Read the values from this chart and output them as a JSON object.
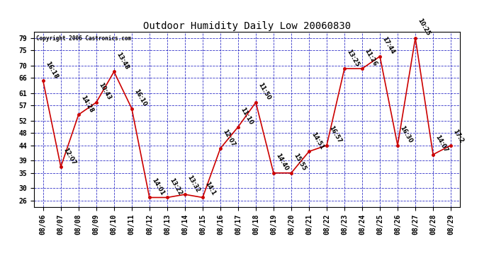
{
  "title": "Outdoor Humidity Daily Low 20060830",
  "copyright": "Copyright 2006 Castronics.com",
  "x_labels": [
    "08/06",
    "08/07",
    "08/08",
    "08/09",
    "08/10",
    "08/11",
    "08/12",
    "08/13",
    "08/14",
    "08/15",
    "08/16",
    "08/17",
    "08/18",
    "08/19",
    "08/20",
    "08/21",
    "08/22",
    "08/23",
    "08/24",
    "08/25",
    "08/26",
    "08/27",
    "08/28",
    "08/29"
  ],
  "y_values": [
    65,
    37,
    54,
    58,
    68,
    56,
    27,
    27,
    28,
    27,
    43,
    50,
    58,
    35,
    35,
    42,
    44,
    69,
    69,
    73,
    44,
    79,
    41,
    44
  ],
  "point_labels": [
    "16:18",
    "12:07",
    "14:28",
    "10:43",
    "13:48",
    "16:10",
    "14:01",
    "13:22",
    "13:32",
    "14:1",
    "12:07",
    "11:10",
    "11:50",
    "14:40",
    "15:55",
    "14:51",
    "16:57",
    "13:25",
    "11:26",
    "17:44",
    "16:30",
    "10:25",
    "14:07",
    "17:2"
  ],
  "ylim": [
    24,
    81
  ],
  "yticks": [
    26,
    30,
    35,
    39,
    44,
    48,
    52,
    57,
    61,
    66,
    70,
    75,
    79
  ],
  "bg_color": "#ffffff",
  "line_color": "#cc0000",
  "marker_color": "#cc0000",
  "grid_color": "#0000bb",
  "title_fontsize": 10,
  "label_fontsize": 6.0,
  "tick_fontsize": 7.0
}
